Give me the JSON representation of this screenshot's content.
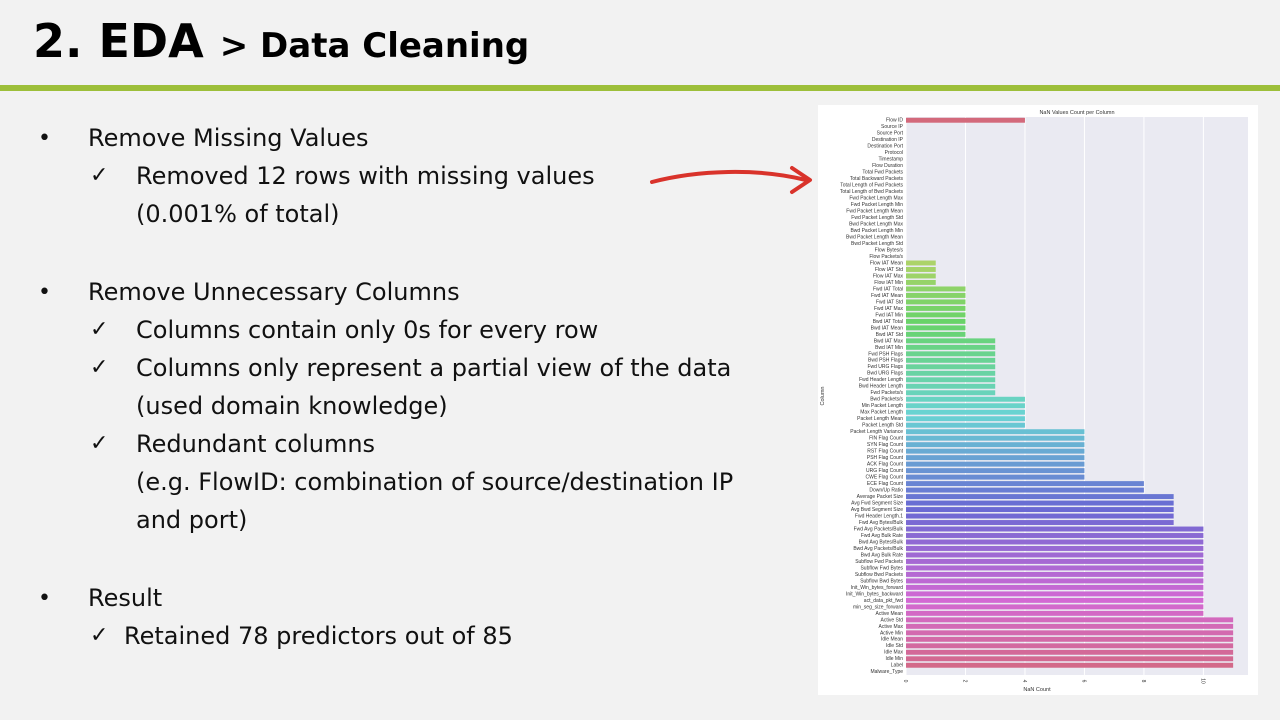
{
  "slide": {
    "title_main": "2. EDA",
    "title_sub": "> Data Cleaning"
  },
  "content": {
    "bullet_char": "•",
    "check_char": "✓",
    "sections": [
      {
        "heading": "Remove Missing Values",
        "items": [
          [
            "Removed 12 rows with missing values",
            "(0.001% of total)"
          ]
        ]
      },
      {
        "heading": "Remove Unnecessary Columns",
        "items": [
          [
            "Columns contain only 0s for every row"
          ],
          [
            "Columns only represent a partial view of the data",
            "(used domain knowledge)"
          ],
          [
            "Redundant columns",
            "(e.g. FlowID: combination of source/destination IP",
            "and port)"
          ]
        ]
      },
      {
        "heading": "Result",
        "items": [
          [
            "Retained 78 predictors out of 85"
          ]
        ]
      }
    ]
  },
  "chart_data": {
    "type": "bar",
    "orientation": "horizontal",
    "title": "NaN Values Count per Column",
    "xlabel": "NaN Count",
    "ylabel": "Column",
    "xlim": [
      0,
      11.5
    ],
    "xticks": [
      "0",
      "2",
      "4",
      "6",
      "8",
      "10"
    ],
    "grid": true,
    "categories": [
      "Flow ID",
      "Source IP",
      "Source Port",
      "Destination IP",
      "Destination Port",
      "Protocol",
      "Timestamp",
      "Flow Duration",
      "Total Fwd Packets",
      "Total Backward Packets",
      "Total Length of Fwd Packets",
      "Total Length of Bwd Packets",
      "Fwd Packet Length Max",
      "Fwd Packet Length Min",
      "Fwd Packet Length Mean",
      "Fwd Packet Length Std",
      "Bwd Packet Length Max",
      "Bwd Packet Length Min",
      "Bwd Packet Length Mean",
      "Bwd Packet Length Std",
      "Flow Bytes/s",
      "Flow Packets/s",
      "Flow IAT Mean",
      "Flow IAT Std",
      "Flow IAT Max",
      "Flow IAT Min",
      "Fwd IAT Total",
      "Fwd IAT Mean",
      "Fwd IAT Std",
      "Fwd IAT Max",
      "Fwd IAT Min",
      "Bwd IAT Total",
      "Bwd IAT Mean",
      "Bwd IAT Std",
      "Bwd IAT Max",
      "Bwd IAT Min",
      "Fwd PSH Flags",
      "Bwd PSH Flags",
      "Fwd URG Flags",
      "Bwd URG Flags",
      "Fwd Header Length",
      "Bwd Header Length",
      "Fwd Packets/s",
      "Bwd Packets/s",
      "Min Packet Length",
      "Max Packet Length",
      "Packet Length Mean",
      "Packet Length Std",
      "Packet Length Variance",
      "FIN Flag Count",
      "SYN Flag Count",
      "RST Flag Count",
      "PSH Flag Count",
      "ACK Flag Count",
      "URG Flag Count",
      "CWE Flag Count",
      "ECE Flag Count",
      "Down/Up Ratio",
      "Average Packet Size",
      "Avg Fwd Segment Size",
      "Avg Bwd Segment Size",
      "Fwd Header Length.1",
      "Fwd Avg Bytes/Bulk",
      "Fwd Avg Packets/Bulk",
      "Fwd Avg Bulk Rate",
      "Bwd Avg Bytes/Bulk",
      "Bwd Avg Packets/Bulk",
      "Bwd Avg Bulk Rate",
      "Subflow Fwd Packets",
      "Subflow Fwd Bytes",
      "Subflow Bwd Packets",
      "Subflow Bwd Bytes",
      "Init_Win_bytes_forward",
      "Init_Win_bytes_backward",
      "act_data_pkt_fwd",
      "min_seg_size_forward",
      "Active Mean",
      "Active Std",
      "Active Max",
      "Active Min",
      "Idle Mean",
      "Idle Std",
      "Idle Max",
      "Idle Min",
      "Label",
      "Malware_Type"
    ],
    "values": [
      4,
      0,
      0,
      0,
      0,
      0,
      0,
      0,
      0,
      0,
      0,
      0,
      0,
      0,
      0,
      0,
      0,
      0,
      0,
      0,
      0,
      0,
      1,
      1,
      1,
      1,
      2,
      2,
      2,
      2,
      2,
      2,
      2,
      2,
      3,
      3,
      3,
      3,
      3,
      3,
      3,
      3,
      3,
      4,
      4,
      4,
      4,
      4,
      6,
      6,
      6,
      6,
      6,
      6,
      6,
      6,
      8,
      8,
      9,
      9,
      9,
      9,
      9,
      10,
      10,
      10,
      10,
      10,
      10,
      10,
      10,
      10,
      10,
      10,
      10,
      10,
      10,
      11,
      11,
      11,
      11,
      11,
      11,
      11,
      11,
      0
    ]
  }
}
